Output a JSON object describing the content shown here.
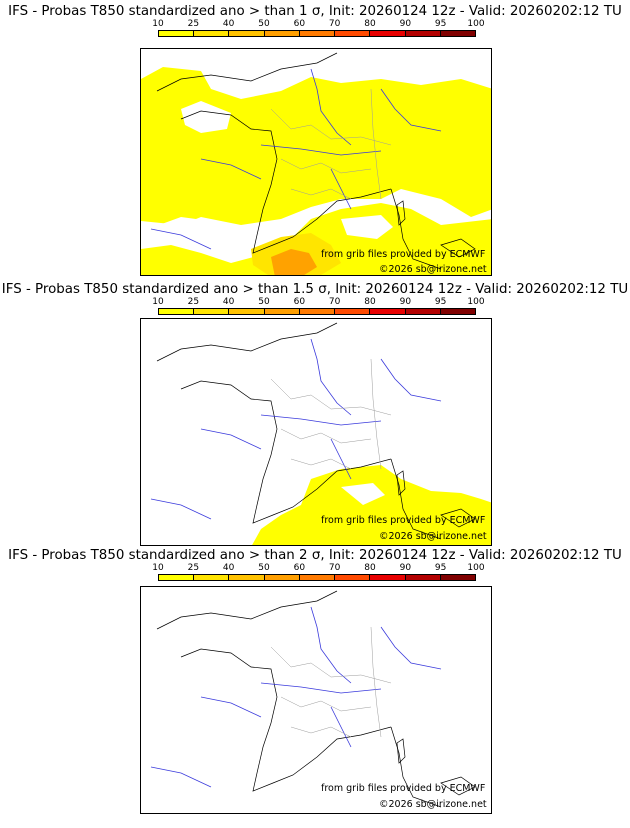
{
  "panels": [
    {
      "title": "IFS - Probas T850  standardized ano > than 1 σ, Init: 20260124 12z - Valid: 20260202:12 TU",
      "shading_level": "high"
    },
    {
      "title": "IFS - Probas T850  standardized ano > than 1.5 σ, Init: 20260124 12z - Valid: 20260202:12 TU",
      "shading_level": "medium"
    },
    {
      "title": "IFS - Probas T850  standardized ano > than 2 σ, Init: 20260124 12z - Valid: 20260202:12 TU",
      "shading_level": "none"
    }
  ],
  "colorbar": {
    "ticks": [
      "10",
      "25",
      "40",
      "50",
      "60",
      "70",
      "80",
      "90",
      "95",
      "100"
    ],
    "colors": [
      "#ffff00",
      "#ffe400",
      "#ffc200",
      "#ff9f00",
      "#ff7a00",
      "#ff4a00",
      "#e80000",
      "#b30000",
      "#800000"
    ]
  },
  "credits": {
    "source": "from grib files provided by ECMWF",
    "copyright": "©2026 sb@irizone.net"
  },
  "colors": {
    "shade_light": "#ffff00",
    "shade_mid": "#ffe500",
    "shade_orange": "#ffa200",
    "rivers": "#3a3adc",
    "borders": "#9c9c9c",
    "coast": "#000000"
  }
}
